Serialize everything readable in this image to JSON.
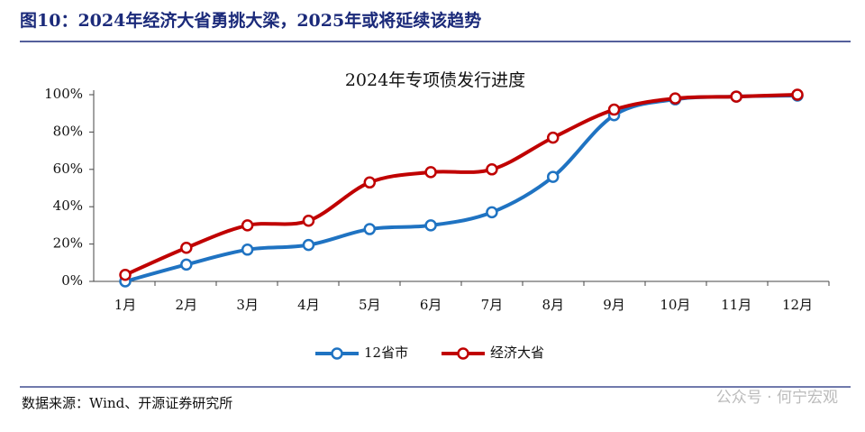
{
  "header": {
    "title": "图10：2024年经济大省勇挑大梁，2025年或将延续该趋势"
  },
  "chart_data": {
    "type": "line",
    "title": "2024年专项债发行进度",
    "categories": [
      "1月",
      "2月",
      "3月",
      "4月",
      "5月",
      "6月",
      "7月",
      "8月",
      "9月",
      "10月",
      "11月",
      "12月"
    ],
    "series": [
      {
        "name": "12省市",
        "color": "#1f73c2",
        "values": [
          0,
          9,
          17,
          19.5,
          28,
          30,
          37,
          56,
          89,
          97.5,
          99,
          99.5
        ]
      },
      {
        "name": "经济大省",
        "color": "#c00000",
        "values": [
          3.5,
          18,
          30,
          32.5,
          53,
          58.5,
          60,
          77,
          92,
          98,
          99,
          100
        ]
      }
    ],
    "ylim": [
      0,
      100
    ],
    "yticks": [
      {
        "value": 0,
        "label": "0%"
      },
      {
        "value": 20,
        "label": "20%"
      },
      {
        "value": 40,
        "label": "40%"
      },
      {
        "value": 60,
        "label": "60%"
      },
      {
        "value": 80,
        "label": "80%"
      },
      {
        "value": 100,
        "label": "100%"
      }
    ],
    "legend": "bottom"
  },
  "footer": {
    "source": "数据来源：Wind、开源证券研究所",
    "watermark": "公众号 · 何宁宏观"
  }
}
